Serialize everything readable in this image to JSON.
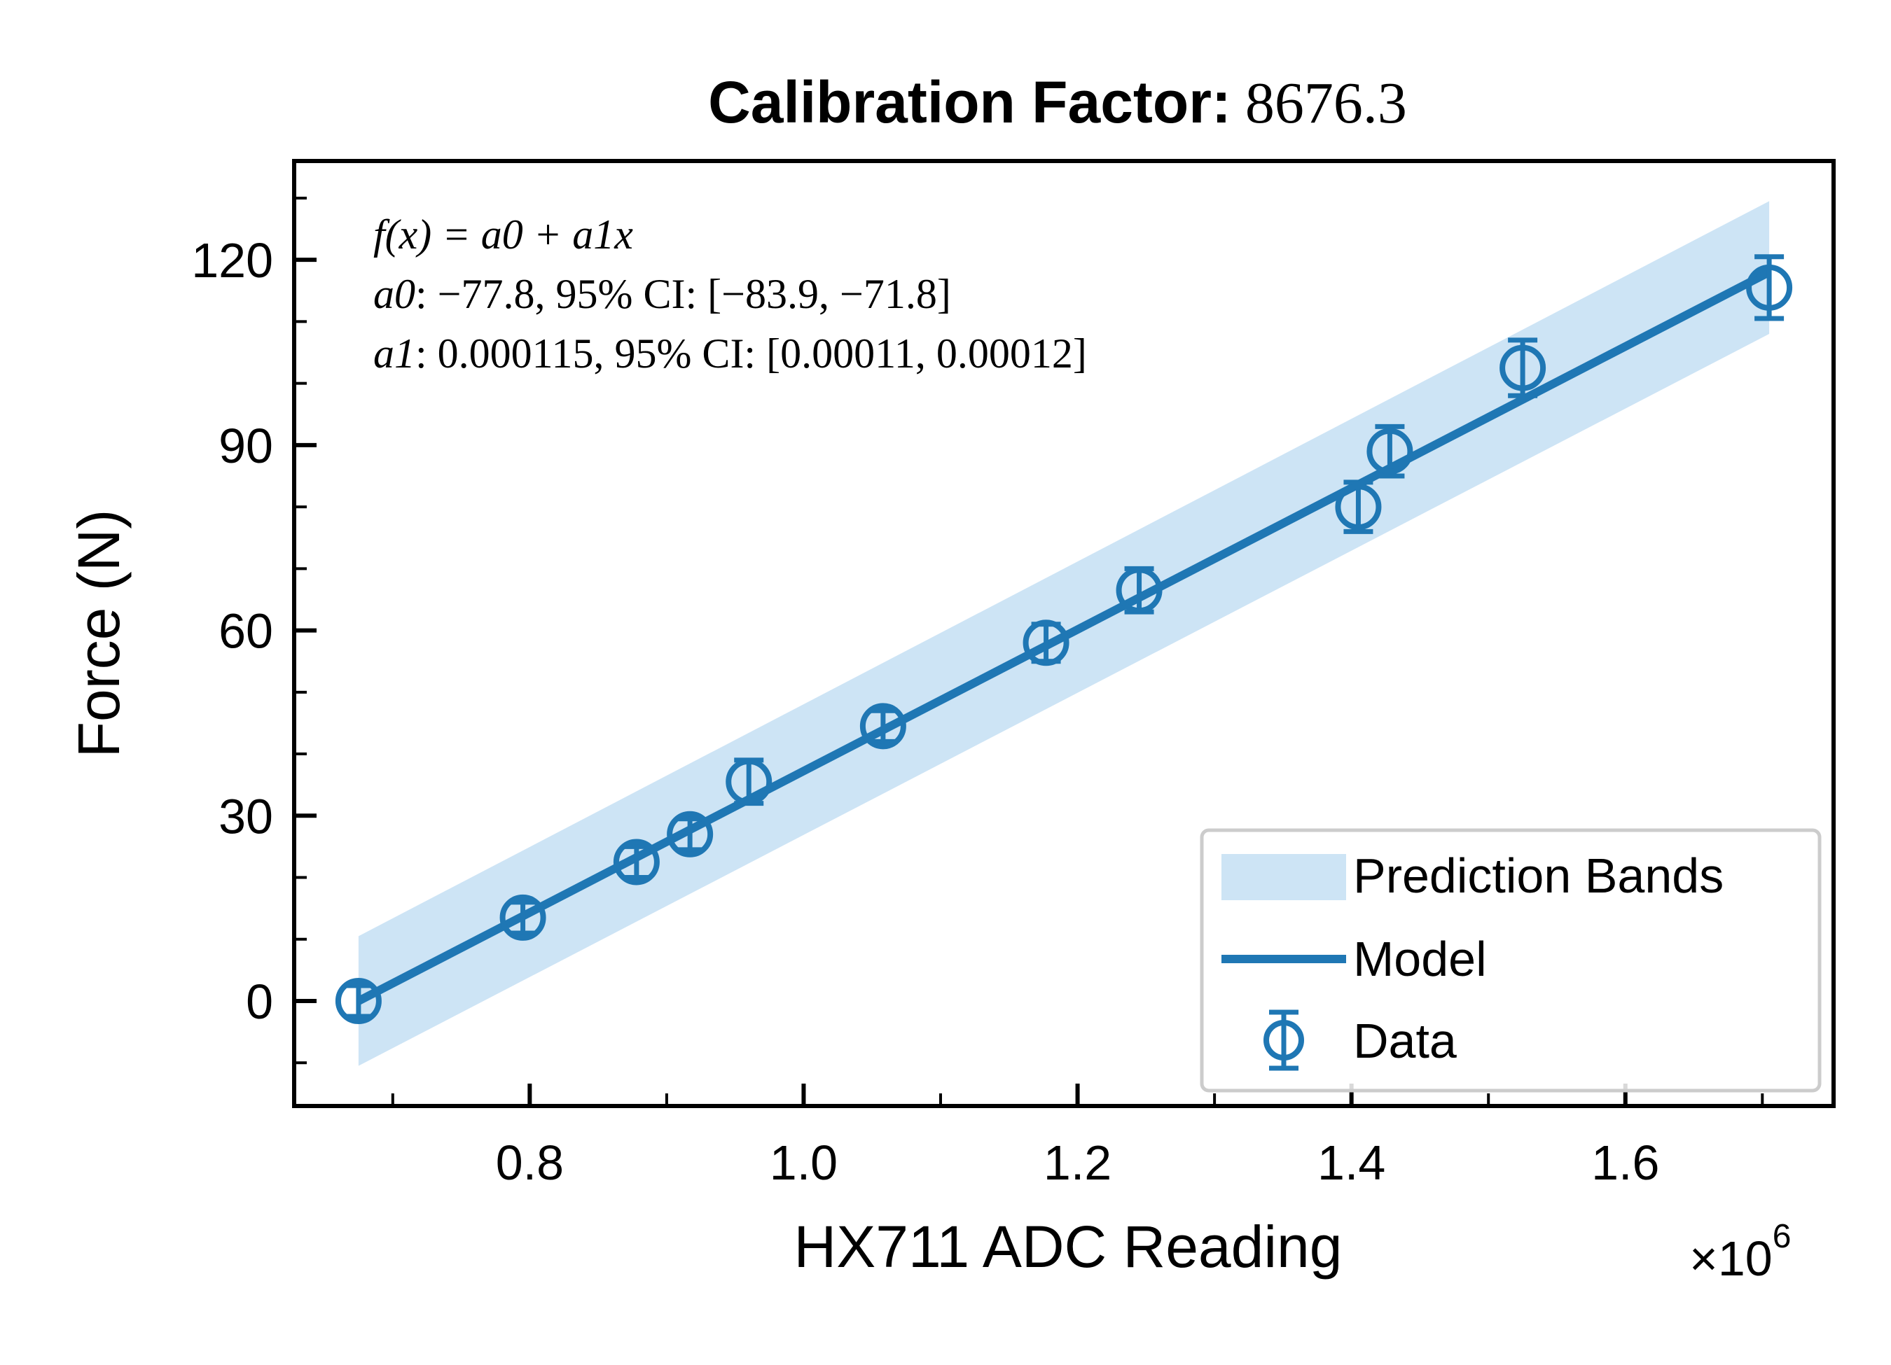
{
  "chart_data": {
    "type": "scatter",
    "title_bold": "Calibration Factor:",
    "title_value": "8676.3",
    "xlabel": "HX711 ADC Reading",
    "ylabel": "Force (N)",
    "x_multiplier_base": "×10",
    "x_multiplier_exp": "6",
    "x_scale": 1000000,
    "xlim": [
      0.628,
      1.752
    ],
    "ylim": [
      -17,
      136
    ],
    "x_ticks": [
      0.8,
      1.0,
      1.2,
      1.4,
      1.6
    ],
    "x_tick_labels": [
      "0.8",
      "1.0",
      "1.2",
      "1.4",
      "1.6"
    ],
    "x_minor_ticks": [
      0.7,
      0.9,
      1.1,
      1.3,
      1.5,
      1.7
    ],
    "y_ticks": [
      0,
      30,
      60,
      90,
      120
    ],
    "y_tick_labels": [
      "0",
      "30",
      "60",
      "90",
      "120"
    ],
    "y_minor_ticks": [
      -10,
      10,
      20,
      40,
      50,
      70,
      80,
      100,
      110,
      130
    ],
    "grid": false,
    "annotations": {
      "equation": "f(x) = a0 + a1x",
      "a0_name": "a0",
      "a0_text": "−77.8, 95% CI: [−83.9, −71.8]",
      "a1_name": "a1",
      "a1_text": "0.000115, 95% CI: [0.00011, 0.00012]"
    },
    "legend": {
      "placement": "lower-right",
      "items": [
        "Prediction Bands",
        "Model",
        "Data"
      ]
    },
    "model": {
      "x": [
        0.675,
        1.705
      ],
      "y": [
        0.0,
        118.0
      ]
    },
    "prediction_band": {
      "x": [
        0.675,
        1.705
      ],
      "lower": [
        -10.5,
        108.0
      ],
      "upper": [
        10.5,
        129.5
      ]
    },
    "series": [
      {
        "name": "Data",
        "x": [
          0.675,
          0.795,
          0.878,
          0.917,
          0.96,
          1.058,
          1.177,
          1.245,
          1.405,
          1.428,
          1.525,
          1.705
        ],
        "y": [
          0.0,
          13.5,
          22.5,
          27.0,
          35.5,
          44.5,
          58.0,
          66.5,
          80.0,
          89.0,
          102.5,
          115.5
        ],
        "yerr": [
          2.5,
          2.5,
          2.5,
          2.5,
          3.5,
          2.5,
          3.0,
          3.5,
          4.0,
          4.0,
          4.5,
          5.0
        ]
      }
    ],
    "colors": {
      "data": "#1f77b4",
      "model": "#1f77b4",
      "band": "#cde4f5"
    }
  }
}
